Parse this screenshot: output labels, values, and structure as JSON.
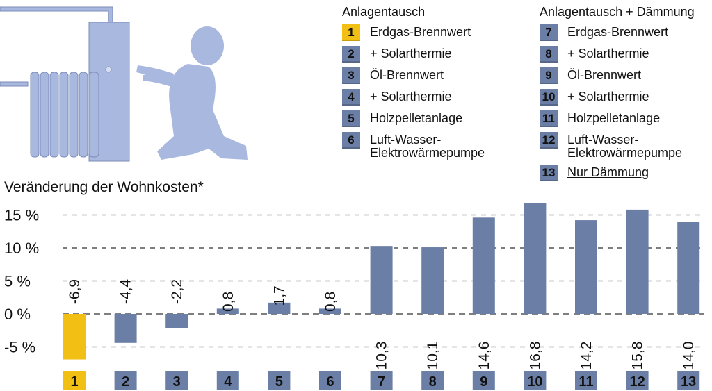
{
  "colors": {
    "bar_default": "#6b7ea6",
    "bar_highlight": "#f2c015",
    "illustration": "#a9b8df",
    "gridline": "#333333"
  },
  "legend": {
    "group1": {
      "heading": "Anlagentausch",
      "items": [
        {
          "num": "1",
          "label": "Erdgas-Brennwert",
          "highlight": true
        },
        {
          "num": "2",
          "label": "+ Solarthermie"
        },
        {
          "num": "3",
          "label": "Öl-Brennwert"
        },
        {
          "num": "4",
          "label": "+ Solarthermie"
        },
        {
          "num": "5",
          "label": "Holzpelletanlage"
        },
        {
          "num": "6",
          "label": "Luft-Wasser-\nElektrowärmepumpe"
        }
      ]
    },
    "group2": {
      "heading": "Anlagentausch + Dämmung",
      "items": [
        {
          "num": "7",
          "label": "Erdgas-Brennwert"
        },
        {
          "num": "8",
          "label": "+ Solarthermie"
        },
        {
          "num": "9",
          "label": "Öl-Brennwert"
        },
        {
          "num": "10",
          "label": "+ Solarthermie"
        },
        {
          "num": "11",
          "label": "Holzpelletanlage"
        },
        {
          "num": "12",
          "label": "Luft-Wasser-\nElektrowärmepumpe"
        }
      ],
      "extra": {
        "num": "13",
        "label": "Nur Dämmung",
        "underline": true
      }
    }
  },
  "chart_data": {
    "type": "bar",
    "title": "Veränderung der Wohnkosten*",
    "categories": [
      "1",
      "2",
      "3",
      "4",
      "5",
      "6",
      "7",
      "8",
      "9",
      "10",
      "11",
      "12",
      "13"
    ],
    "values": [
      -6.9,
      -4.4,
      -2.2,
      0.8,
      1.7,
      0.8,
      10.3,
      10.1,
      14.6,
      16.8,
      14.2,
      15.8,
      14.0
    ],
    "value_labels": [
      "-6,9",
      "-4,4",
      "-2,2",
      "0,8",
      "1,7",
      "0,8",
      "10,3",
      "10,1",
      "14,6",
      "16,8",
      "14,2",
      "15,8",
      "14,0"
    ],
    "highlight_index": 0,
    "yticks": [
      -5,
      0,
      5,
      10,
      15
    ],
    "ytick_labels": [
      "-5 %",
      "0 %",
      "5 %",
      "10 %",
      "15 %"
    ],
    "ylim": [
      -7.3,
      16.8
    ],
    "grid": "dashed horizontal",
    "xlabel": "",
    "ylabel": ""
  }
}
